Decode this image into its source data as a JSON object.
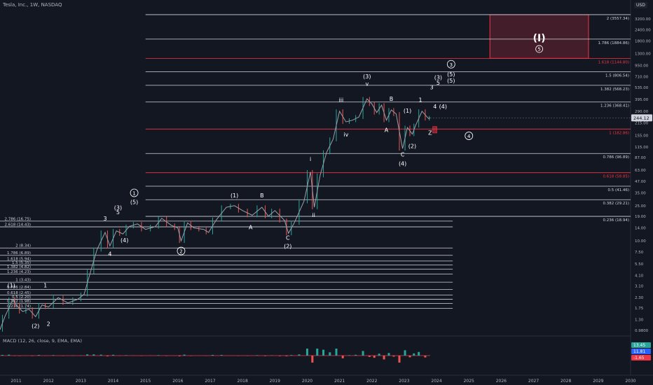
{
  "header": {
    "title": "Tesla, Inc., 1W, NASDAQ",
    "currency": "USD"
  },
  "macd": {
    "title": "MACD (12, 26, close, 9, EMA, EMA)",
    "values": [
      "13.45",
      "11.81",
      "-1.65"
    ]
  },
  "current_price": "244.12",
  "chart_data": {
    "type": "line",
    "title": "Tesla, Inc., 1W, NASDAQ",
    "yscale": "log",
    "ylim": [
      0.88,
      4500
    ],
    "xlim": [
      2010.5,
      2030.0
    ],
    "y_ticks": [
      "3200.00",
      "2400.00",
      "1800.00",
      "1300.00",
      "950.00",
      "710.00",
      "535.00",
      "395.00",
      "290.00",
      "215.00",
      "155.00",
      "115.00",
      "87.00",
      "63.00",
      "47.00",
      "35.00",
      "25.00",
      "19.00",
      "14.00",
      "10.00",
      "7.50",
      "5.50",
      "4.10",
      "3.10",
      "2.30",
      "1.75",
      "1.30",
      "0.9800"
    ],
    "x_ticks": [
      "2011",
      "2012",
      "2013",
      "2014",
      "2015",
      "2016",
      "2017",
      "2018",
      "2019",
      "2020",
      "2021",
      "2022",
      "2023",
      "2024",
      "2025",
      "2026",
      "2027",
      "2028",
      "2029",
      "2030"
    ],
    "price_series": {
      "name": "TSLA",
      "points": [
        [
          2010.5,
          1.0
        ],
        [
          2010.65,
          1.4
        ],
        [
          2010.9,
          2.2
        ],
        [
          2011.0,
          1.9
        ],
        [
          2011.2,
          1.6
        ],
        [
          2011.4,
          1.7
        ],
        [
          2011.6,
          1.4
        ],
        [
          2011.8,
          1.9
        ],
        [
          2012.0,
          1.8
        ],
        [
          2012.3,
          2.3
        ],
        [
          2012.6,
          2.0
        ],
        [
          2012.9,
          2.2
        ],
        [
          2013.1,
          2.5
        ],
        [
          2013.3,
          4.5
        ],
        [
          2013.5,
          8.0
        ],
        [
          2013.75,
          12.5
        ],
        [
          2013.9,
          8.8
        ],
        [
          2014.1,
          13.0
        ],
        [
          2014.3,
          12.0
        ],
        [
          2014.5,
          14.6
        ],
        [
          2014.75,
          15.6
        ],
        [
          2015.0,
          13.5
        ],
        [
          2015.3,
          14.5
        ],
        [
          2015.5,
          18.0
        ],
        [
          2015.8,
          15.0
        ],
        [
          2016.0,
          14.0
        ],
        [
          2016.1,
          10.0
        ],
        [
          2016.3,
          16.0
        ],
        [
          2016.5,
          14.0
        ],
        [
          2016.8,
          13.5
        ],
        [
          2016.95,
          12.5
        ],
        [
          2017.2,
          17.5
        ],
        [
          2017.5,
          24.0
        ],
        [
          2017.75,
          25.0
        ],
        [
          2018.0,
          22.0
        ],
        [
          2018.3,
          19.5
        ],
        [
          2018.6,
          24.0
        ],
        [
          2018.8,
          19.0
        ],
        [
          2019.0,
          22.0
        ],
        [
          2019.3,
          17.0
        ],
        [
          2019.42,
          12.2
        ],
        [
          2019.6,
          16.0
        ],
        [
          2019.9,
          28.0
        ],
        [
          2020.1,
          60.0
        ],
        [
          2020.22,
          24.0
        ],
        [
          2020.4,
          55.0
        ],
        [
          2020.6,
          100.0
        ],
        [
          2020.8,
          140.0
        ],
        [
          2021.0,
          290.0
        ],
        [
          2021.2,
          220.0
        ],
        [
          2021.4,
          230.0
        ],
        [
          2021.6,
          250.0
        ],
        [
          2021.85,
          400.0
        ],
        [
          2022.0,
          350.0
        ],
        [
          2022.15,
          280.0
        ],
        [
          2022.3,
          340.0
        ],
        [
          2022.45,
          230.0
        ],
        [
          2022.6,
          300.0
        ],
        [
          2022.75,
          270.0
        ],
        [
          2022.95,
          110.0
        ],
        [
          2023.1,
          190.0
        ],
        [
          2023.25,
          160.0
        ],
        [
          2023.35,
          200.0
        ],
        [
          2023.55,
          290.0
        ],
        [
          2023.75,
          240.0
        ],
        [
          2023.8,
          244.12
        ]
      ]
    },
    "fib_levels": [
      {
        "ratio": "2",
        "value": 3557.34,
        "label": "2 (3557.34)",
        "color": "#d1d4dc"
      },
      {
        "ratio": "1.786",
        "value": 1884.86,
        "label": "1.786 (1884.86)",
        "color": "#d1d4dc"
      },
      {
        "ratio": "1.618",
        "value": 1144.8,
        "label": "1.618 (1144.80)",
        "color": "#f23645"
      },
      {
        "ratio": "1.5",
        "value": 806.54,
        "label": "1.5 (806.54)",
        "color": "#d1d4dc"
      },
      {
        "ratio": "1.382",
        "value": 568.23,
        "label": "1.382 (568.23)",
        "color": "#d1d4dc"
      },
      {
        "ratio": "1.236",
        "value": 368.41,
        "label": "1.236 (368.41)",
        "color": "#d1d4dc"
      },
      {
        "ratio": "1",
        "value": 182.86,
        "label": "1 (182.86)",
        "color": "#f23645"
      },
      {
        "ratio": "0.786",
        "value": 96.89,
        "label": "0.786 (96.89)",
        "color": "#d1d4dc"
      },
      {
        "ratio": "0.618",
        "value": 58.85,
        "label": "0.618 (58.85)",
        "color": "#f23645"
      },
      {
        "ratio": "0.5",
        "value": 41.46,
        "label": "0.5 (41.46)",
        "color": "#d1d4dc"
      },
      {
        "ratio": "0.382",
        "value": 29.21,
        "label": "0.382 (29.21)",
        "color": "#d1d4dc"
      },
      {
        "ratio": "0.236",
        "value": 18.94,
        "label": "0.236 (18.94)",
        "color": "#d1d4dc"
      }
    ],
    "fib_levels_left": [
      {
        "value": 16.75,
        "label": "2.786 (16.75)"
      },
      {
        "value": 14.43,
        "label": "2.618 (14.43)"
      },
      {
        "value": 8.34,
        "label": "2 (8.34)"
      },
      {
        "value": 6.89,
        "label": "1.786 (6.89)"
      },
      {
        "value": 5.94,
        "label": "1.618 (5.94)"
      },
      {
        "value": 5.35,
        "label": "1.5 (5.35)"
      },
      {
        "value": 4.82,
        "label": "1.382 (4.82)"
      },
      {
        "value": 4.23,
        "label": "1.236 (4.23)"
      },
      {
        "value": 3.43,
        "label": "1 (3.43)"
      },
      {
        "value": 2.84,
        "label": "0.786 (2.84)"
      },
      {
        "value": 2.45,
        "label": "0.618 (2.45)"
      },
      {
        "value": 2.2,
        "label": "0.5 (2.20)"
      },
      {
        "value": 1.98,
        "label": "0.382 (1.98)"
      },
      {
        "value": 1.74,
        "label": "0.236 (1.74)"
      }
    ],
    "target_box": {
      "x1": 2025.65,
      "x2": 2028.7,
      "y1": 1144.8,
      "y2": 3557.34,
      "label": "(I)",
      "sublabel": "5"
    },
    "wave_labels": [
      {
        "text": "(1)",
        "x": 2010.85,
        "y": 3.0,
        "circle": false
      },
      {
        "text": "1",
        "x": 2011.9,
        "y": 3.0,
        "circle": false
      },
      {
        "text": "(2)",
        "x": 2011.6,
        "y": 1.05,
        "circle": false
      },
      {
        "text": "2",
        "x": 2012.0,
        "y": 1.1,
        "circle": false
      },
      {
        "text": "3",
        "x": 2013.75,
        "y": 17.0,
        "circle": false
      },
      {
        "text": "4",
        "x": 2013.9,
        "y": 6.8,
        "circle": false
      },
      {
        "text": "(3)",
        "x": 2014.15,
        "y": 22.5,
        "circle": false
      },
      {
        "text": "5",
        "x": 2014.15,
        "y": 20.0,
        "circle": false
      },
      {
        "text": "(4)",
        "x": 2014.35,
        "y": 9.7,
        "circle": false
      },
      {
        "text": "(5)",
        "x": 2014.65,
        "y": 26.0,
        "circle": false
      },
      {
        "text": "1",
        "x": 2014.65,
        "y": 33.0,
        "circle": true
      },
      {
        "text": "2",
        "x": 2016.1,
        "y": 7.3,
        "circle": true
      },
      {
        "text": "(1)",
        "x": 2017.75,
        "y": 31.0,
        "circle": false
      },
      {
        "text": "B",
        "x": 2018.6,
        "y": 31.0,
        "circle": false
      },
      {
        "text": "A",
        "x": 2018.25,
        "y": 13.5,
        "circle": false
      },
      {
        "text": "C",
        "x": 2019.4,
        "y": 10.3,
        "circle": false
      },
      {
        "text": "(2)",
        "x": 2019.4,
        "y": 8.3,
        "circle": false
      },
      {
        "text": "i",
        "x": 2020.1,
        "y": 80.0,
        "circle": false
      },
      {
        "text": "ii",
        "x": 2020.2,
        "y": 18.6,
        "circle": false
      },
      {
        "text": "iii",
        "x": 2021.05,
        "y": 370.0,
        "circle": false
      },
      {
        "text": "iv",
        "x": 2021.2,
        "y": 150.0,
        "circle": false
      },
      {
        "text": "v",
        "x": 2021.85,
        "y": 560.0,
        "circle": false
      },
      {
        "text": "(3)",
        "x": 2021.85,
        "y": 680.0,
        "circle": false
      },
      {
        "text": "B",
        "x": 2022.6,
        "y": 380.0,
        "circle": false
      },
      {
        "text": "A",
        "x": 2022.45,
        "y": 170.0,
        "circle": false
      },
      {
        "text": "(1)",
        "x": 2023.1,
        "y": 280.0,
        "circle": false
      },
      {
        "text": "C",
        "x": 2022.95,
        "y": 90.0,
        "circle": false
      },
      {
        "text": "(4)",
        "x": 2022.95,
        "y": 71.0,
        "circle": false
      },
      {
        "text": "(2)",
        "x": 2023.25,
        "y": 112.0,
        "circle": false
      },
      {
        "text": "1",
        "x": 2023.5,
        "y": 370.0,
        "circle": false
      },
      {
        "text": "Z",
        "x": 2023.8,
        "y": 158.0,
        "circle": false
      },
      {
        "text": "4",
        "x": 2023.95,
        "y": 310.0,
        "circle": false
      },
      {
        "text": "(4)",
        "x": 2024.2,
        "y": 310.0,
        "circle": false
      },
      {
        "text": "3",
        "x": 2023.85,
        "y": 515.0,
        "circle": false
      },
      {
        "text": "(3)",
        "x": 2024.05,
        "y": 660.0,
        "circle": false
      },
      {
        "text": "5",
        "x": 2024.05,
        "y": 575.0,
        "circle": false
      },
      {
        "text": "(5)",
        "x": 2024.45,
        "y": 720.0,
        "circle": false
      },
      {
        "text": "(5)",
        "x": 2024.45,
        "y": 610.0,
        "circle": false
      },
      {
        "text": "3",
        "x": 2024.45,
        "y": 930.0,
        "circle": true
      },
      {
        "text": "4",
        "x": 2025.0,
        "y": 145.0,
        "circle": true
      }
    ]
  },
  "colors": {
    "background": "#131722",
    "line": "#d1d4dc",
    "red": "#f23645",
    "up": "#26a69a",
    "down": "#ef5350",
    "price_badge": "#787b86"
  }
}
